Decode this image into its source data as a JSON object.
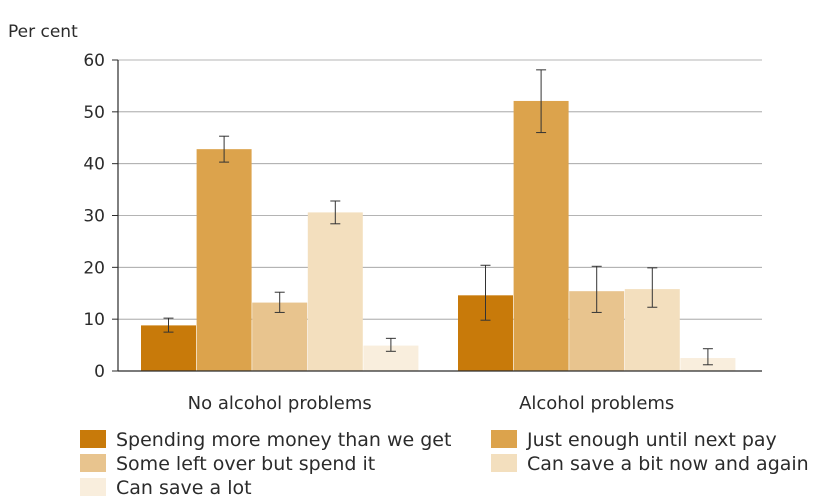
{
  "chart_data": {
    "type": "bar",
    "title": "",
    "ylabel": "Per cent",
    "xlabel": "",
    "ylim": [
      0,
      60
    ],
    "yticks": [
      0,
      10,
      20,
      30,
      40,
      50,
      60
    ],
    "grid": true,
    "legend_position": "bottom",
    "categories": [
      "No alcohol problems",
      "Alcohol problems"
    ],
    "series": [
      {
        "name": "Spending more money than we get",
        "color": "#c87a0a",
        "values": [
          8.8,
          14.6
        ],
        "err_low": [
          7.5,
          9.8
        ],
        "err_high": [
          10.2,
          20.4
        ]
      },
      {
        "name": "Just enough until next pay",
        "color": "#dca34c",
        "values": [
          42.8,
          52.1
        ],
        "err_low": [
          40.3,
          46.0
        ],
        "err_high": [
          45.3,
          58.1
        ]
      },
      {
        "name": "Some left over but spend it",
        "color": "#e8c48e",
        "values": [
          13.2,
          15.4
        ],
        "err_low": [
          11.3,
          11.3
        ],
        "err_high": [
          15.2,
          20.2
        ]
      },
      {
        "name": "Can save a bit now and again",
        "color": "#f3dfbe",
        "values": [
          30.6,
          15.8
        ],
        "err_low": [
          28.4,
          12.3
        ],
        "err_high": [
          32.8,
          19.9
        ]
      },
      {
        "name": "Can save a lot",
        "color": "#f9eedd",
        "values": [
          4.9,
          2.5
        ],
        "err_low": [
          3.8,
          1.2
        ],
        "err_high": [
          6.3,
          4.3
        ]
      }
    ]
  }
}
